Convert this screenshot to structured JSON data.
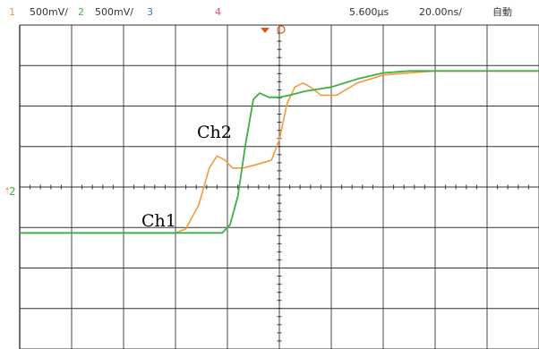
{
  "header": {
    "ch1_num": "1",
    "ch1_scale": "500mV/",
    "ch2_num": "2",
    "ch2_scale": "500mV/",
    "ch3_num": "3",
    "ch4_num": "4",
    "time_offset": "5.600µs",
    "time_div": "20.00ns/",
    "trigger_mode": "自動"
  },
  "colors": {
    "ch1": "#f39a3c",
    "ch2": "#3cb043",
    "ch3": "#4a6fd8",
    "ch4": "#e0457b",
    "grid": "#333333"
  },
  "ground_marker": {
    "label": "2"
  },
  "annotations": {
    "ch1": "Ch1",
    "ch2": "Ch2"
  },
  "chart_data": {
    "type": "line",
    "x_divisions": 10,
    "y_divisions": 8,
    "x_units": "div",
    "y_units": "div (relative to ground marker)",
    "xlim": [
      0,
      10
    ],
    "ylim": [
      -4,
      4
    ],
    "grid": true,
    "series": [
      {
        "name": "Ch1",
        "x": [
          0,
          2.4,
          3.0,
          3.2,
          3.45,
          3.65,
          3.8,
          3.95,
          4.1,
          4.3,
          4.6,
          4.85,
          5.0,
          5.15,
          5.3,
          5.45,
          5.6,
          5.8,
          6.1,
          6.5,
          7.0,
          7.5,
          8.0,
          10.0
        ],
        "y": [
          -1.0,
          -1.0,
          -1.0,
          -0.9,
          -0.3,
          0.6,
          0.9,
          0.8,
          0.6,
          0.6,
          0.7,
          0.8,
          1.3,
          2.2,
          2.6,
          2.7,
          2.6,
          2.4,
          2.4,
          2.7,
          2.9,
          2.95,
          3.0,
          3.0
        ]
      },
      {
        "name": "Ch2",
        "x": [
          0,
          3.2,
          3.9,
          4.05,
          4.2,
          4.35,
          4.5,
          4.62,
          4.8,
          5.0,
          5.2,
          5.5,
          6.0,
          6.5,
          7.0,
          7.5,
          8.0,
          10.0
        ],
        "y": [
          -1.0,
          -1.0,
          -1.0,
          -0.8,
          -0.1,
          1.2,
          2.3,
          2.45,
          2.35,
          2.35,
          2.4,
          2.5,
          2.6,
          2.8,
          2.95,
          3.0,
          3.0,
          3.0
        ]
      }
    ]
  }
}
